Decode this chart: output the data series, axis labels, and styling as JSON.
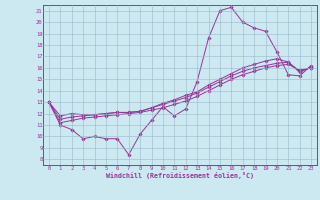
{
  "xlabel": "Windchill (Refroidissement éolien,°C)",
  "bg_color": "#cce8f0",
  "line_color": "#993399",
  "grid_color": "#99bbcc",
  "xlim": [
    -0.5,
    23.5
  ],
  "ylim": [
    7.5,
    21.5
  ],
  "yticks": [
    8,
    9,
    10,
    11,
    12,
    13,
    14,
    15,
    16,
    17,
    18,
    19,
    20,
    21
  ],
  "xticks": [
    0,
    1,
    2,
    3,
    4,
    5,
    6,
    7,
    8,
    9,
    10,
    11,
    12,
    13,
    14,
    15,
    16,
    17,
    18,
    19,
    20,
    21,
    22,
    23
  ],
  "line1_x": [
    0,
    1,
    2,
    3,
    4,
    5,
    6,
    7,
    8,
    9,
    10,
    11,
    12,
    13,
    14,
    15,
    16,
    17,
    18,
    19,
    20,
    21,
    22,
    23
  ],
  "line1_y": [
    13,
    11,
    10.6,
    9.8,
    10,
    9.8,
    9.8,
    8.4,
    10.2,
    11.4,
    12.6,
    11.8,
    12.4,
    14.8,
    18.6,
    21.0,
    21.3,
    20.0,
    19.5,
    19.2,
    17.4,
    15.4,
    15.3,
    16.2
  ],
  "line2_x": [
    0,
    1,
    2,
    3,
    4,
    5,
    6,
    7,
    8,
    9,
    10,
    11,
    12,
    13,
    14,
    15,
    16,
    17,
    18,
    19,
    20,
    21,
    22,
    23
  ],
  "line2_y": [
    13,
    11.8,
    12.0,
    11.9,
    11.9,
    12.0,
    12.1,
    12.1,
    12.2,
    12.5,
    12.9,
    13.2,
    13.6,
    13.9,
    14.5,
    15.0,
    15.5,
    16.0,
    16.3,
    16.6,
    16.8,
    16.5,
    15.6,
    16.1
  ],
  "line3_x": [
    0,
    1,
    2,
    3,
    4,
    5,
    6,
    7,
    8,
    9,
    10,
    11,
    12,
    13,
    14,
    15,
    16,
    17,
    18,
    19,
    20,
    21,
    22,
    23
  ],
  "line3_y": [
    13,
    11.5,
    11.7,
    11.8,
    11.9,
    12.0,
    12.1,
    12.1,
    12.2,
    12.5,
    12.8,
    13.1,
    13.4,
    13.8,
    14.3,
    14.8,
    15.3,
    15.7,
    16.0,
    16.2,
    16.4,
    16.5,
    15.7,
    16.0
  ],
  "line4_x": [
    0,
    1,
    2,
    3,
    4,
    5,
    6,
    7,
    8,
    9,
    10,
    11,
    12,
    13,
    14,
    15,
    16,
    17,
    18,
    19,
    20,
    21,
    22,
    23
  ],
  "line4_y": [
    13,
    11.2,
    11.4,
    11.6,
    11.7,
    11.8,
    11.9,
    12.0,
    12.1,
    12.3,
    12.5,
    12.8,
    13.1,
    13.5,
    14.0,
    14.5,
    15.0,
    15.4,
    15.7,
    16.0,
    16.2,
    16.3,
    15.8,
    16.0
  ]
}
